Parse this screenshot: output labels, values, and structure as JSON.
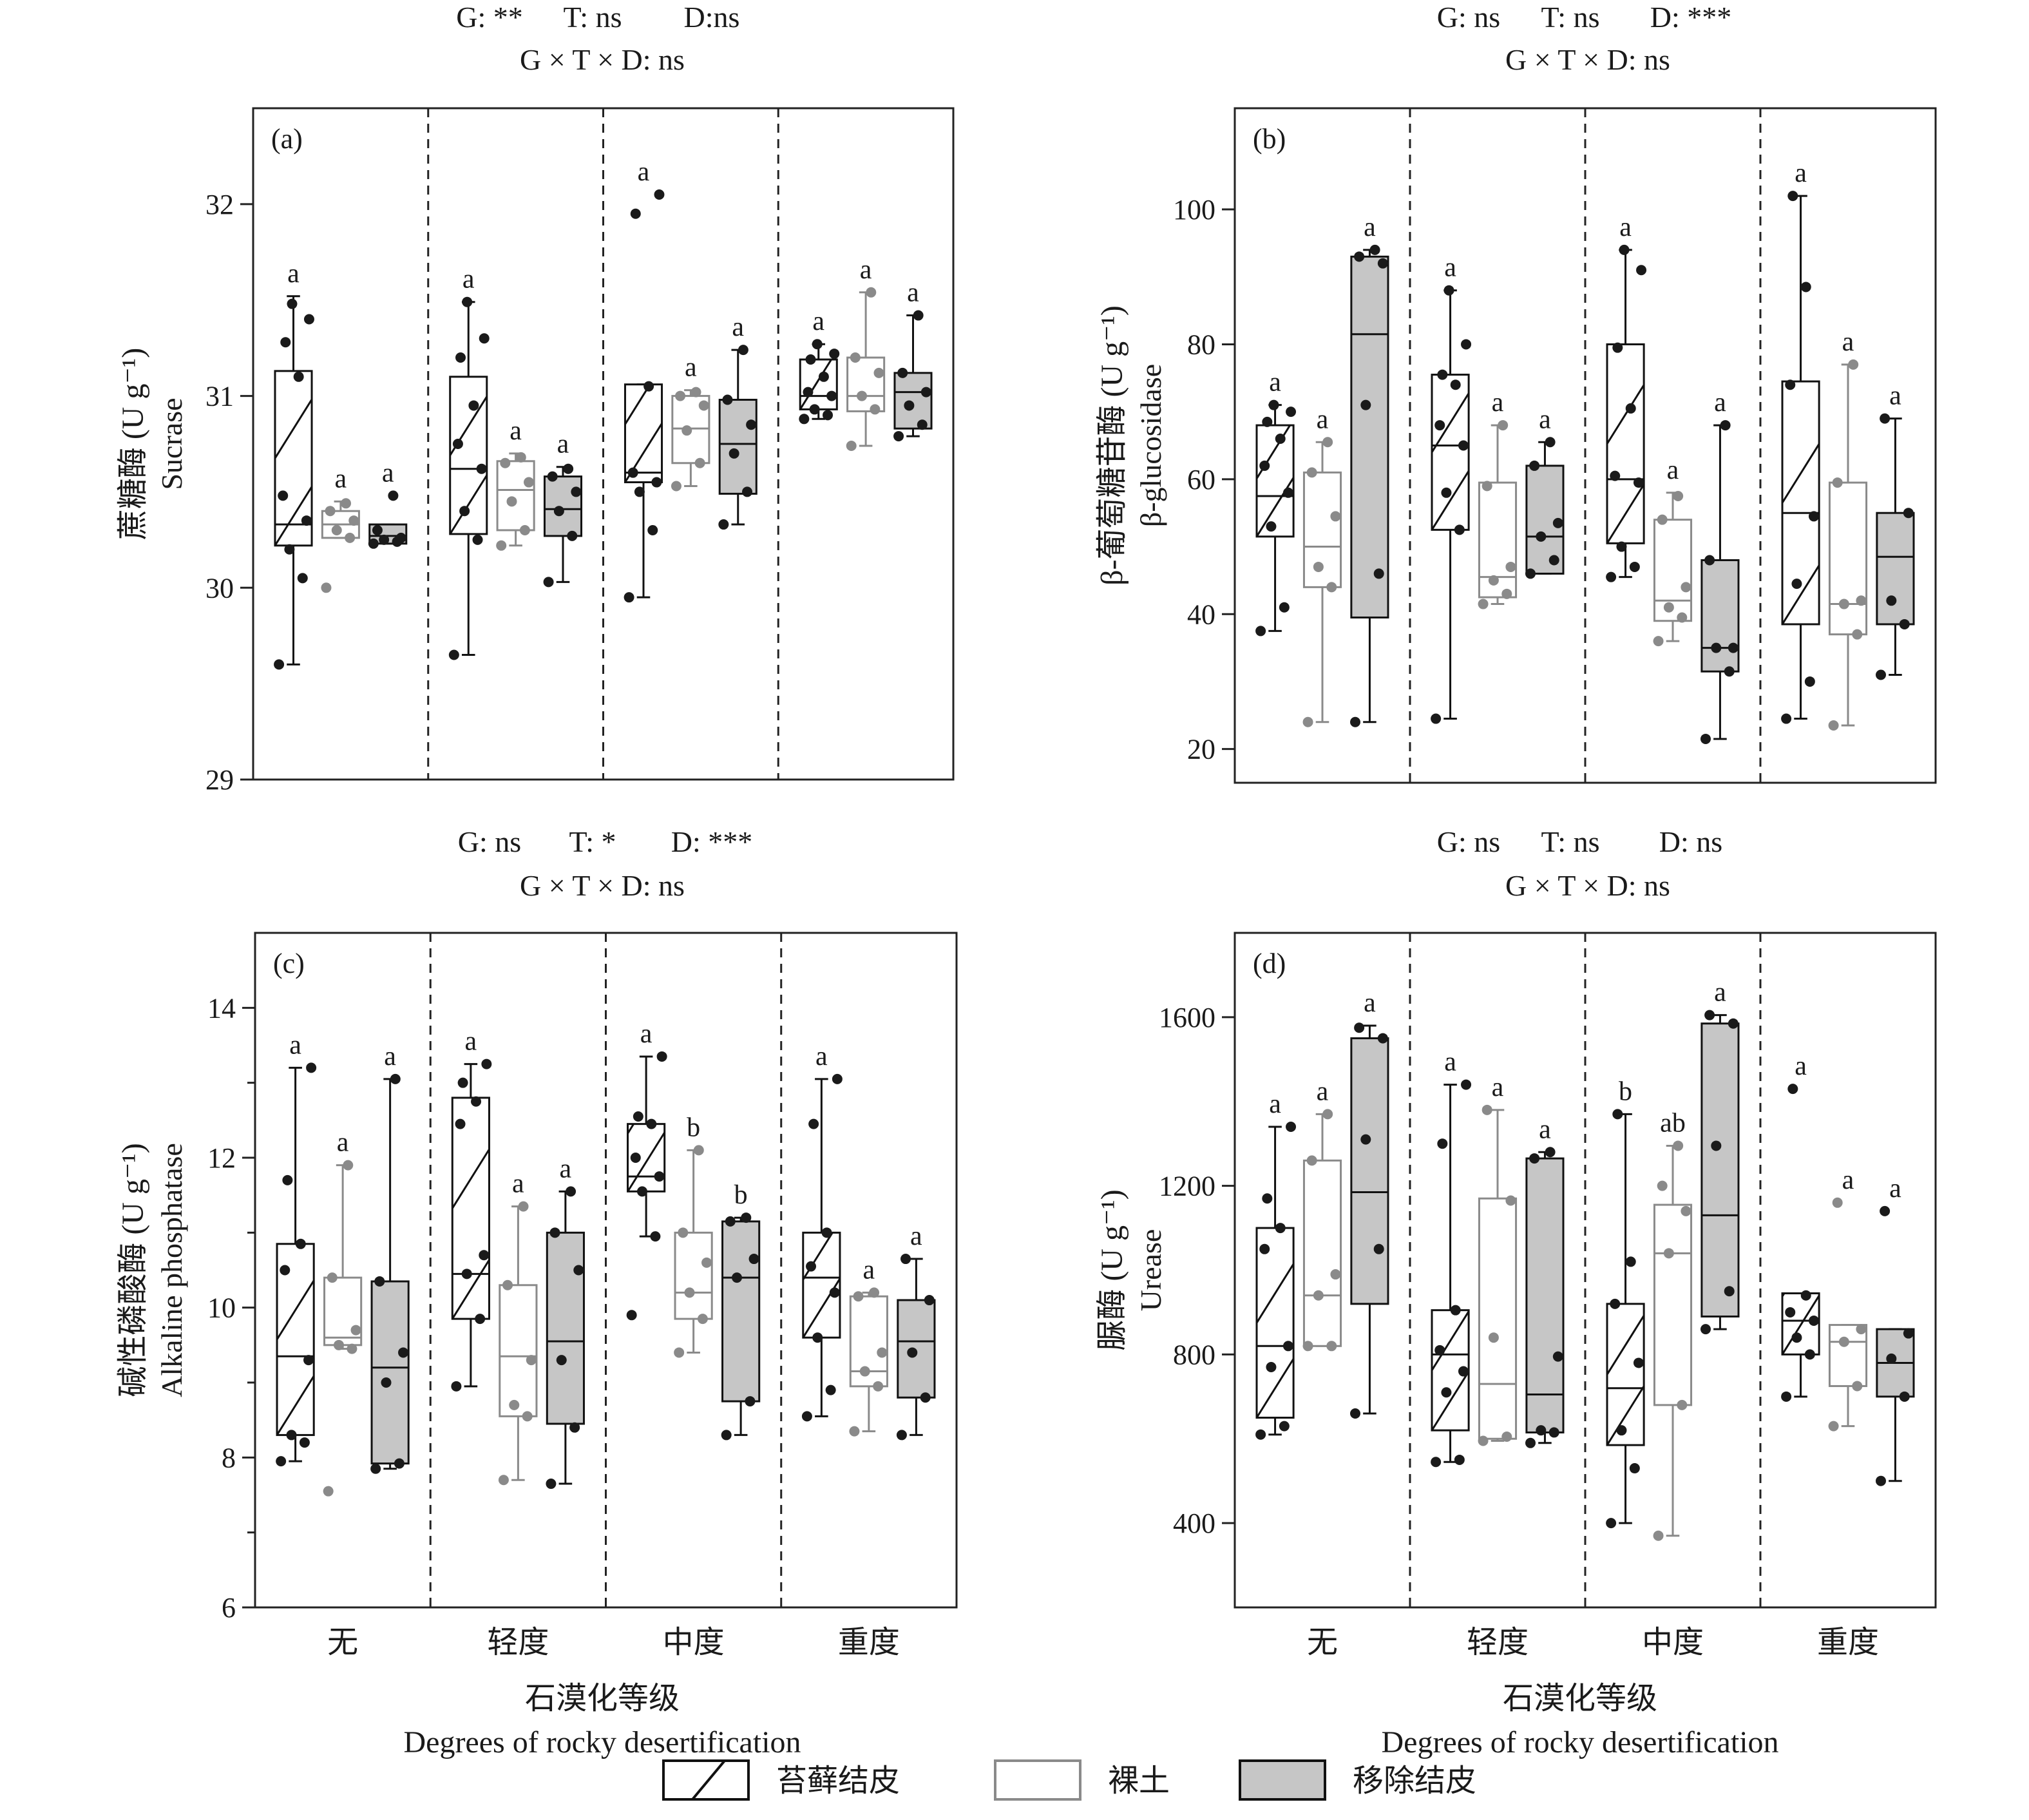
{
  "x_axis": {
    "categories": [
      "无",
      "轻度",
      "中度",
      "重度"
    ],
    "label_zh": "石漠化等级",
    "label_en": "Degrees of rocky desertification"
  },
  "legend": [
    {
      "label": "苔藓结皮",
      "fill": "#ffffff",
      "stroke": "#111111",
      "hatch": true
    },
    {
      "label": "裸土",
      "fill": "#ffffff",
      "stroke": "#8a8a8a",
      "hatch": false
    },
    {
      "label": "移除结皮",
      "fill": "#c6c6c6",
      "stroke": "#111111",
      "hatch": false
    }
  ],
  "colors": {
    "dark": "#1a1a1a",
    "grey_point": "#8a8a8a",
    "grey_fill": "#c6c6c6"
  },
  "chart_data": [
    {
      "type": "box",
      "panel": "(a)",
      "stats_line1": [
        "G: **",
        "T: ns",
        "D:ns"
      ],
      "stats_line2": "G × T × D: ns",
      "ylabel_zh": "蔗糖酶 (U g⁻¹)",
      "ylabel_en": "Sucrase",
      "ylim": [
        29,
        32.5
      ],
      "yticks": [
        29,
        30,
        31,
        32
      ],
      "minor_ticks": [],
      "groups": [
        [
          {
            "q1": 30.22,
            "median": 30.33,
            "q3": 31.13,
            "min": 29.6,
            "max": 31.52,
            "letter": "a",
            "points": [
              29.6,
              30.05,
              30.2,
              30.35,
              30.48,
              31.1,
              31.28,
              31.4,
              31.48
            ]
          },
          {
            "q1": 30.26,
            "median": 30.33,
            "q3": 30.4,
            "min": 30.26,
            "max": 30.45,
            "letter": "a",
            "points": [
              30.0,
              30.26,
              30.3,
              30.35,
              30.4,
              30.44
            ]
          },
          {
            "q1": 30.23,
            "median": 30.27,
            "q3": 30.33,
            "min": 30.23,
            "max": 30.33,
            "letter": "a",
            "points": [
              30.23,
              30.24,
              30.25,
              30.26,
              30.3,
              30.48
            ]
          }
        ],
        [
          {
            "q1": 30.28,
            "median": 30.62,
            "q3": 31.1,
            "min": 29.65,
            "max": 31.49,
            "letter": "a",
            "points": [
              29.65,
              30.25,
              30.4,
              30.62,
              30.75,
              30.95,
              31.2,
              31.3,
              31.49
            ]
          },
          {
            "q1": 30.3,
            "median": 30.51,
            "q3": 30.66,
            "min": 30.22,
            "max": 30.7,
            "letter": "a",
            "points": [
              30.22,
              30.3,
              30.45,
              30.55,
              30.65,
              30.68
            ]
          },
          {
            "q1": 30.27,
            "median": 30.41,
            "q3": 30.58,
            "min": 30.03,
            "max": 30.63,
            "letter": "a",
            "points": [
              30.03,
              30.27,
              30.4,
              30.5,
              30.58,
              30.62
            ]
          }
        ],
        [
          {
            "q1": 30.55,
            "median": 30.6,
            "q3": 31.06,
            "min": 29.95,
            "max": 31.06,
            "letter": "a",
            "points": [
              29.95,
              30.3,
              30.5,
              30.55,
              30.6,
              31.05,
              31.95,
              32.05
            ]
          },
          {
            "q1": 30.65,
            "median": 30.83,
            "q3": 31.0,
            "min": 30.53,
            "max": 31.03,
            "letter": "a",
            "points": [
              30.53,
              30.65,
              30.82,
              30.95,
              31.0,
              31.02
            ]
          },
          {
            "q1": 30.49,
            "median": 30.75,
            "q3": 30.98,
            "min": 30.33,
            "max": 31.24,
            "letter": "a",
            "points": [
              30.33,
              30.5,
              30.7,
              30.85,
              30.98,
              31.24
            ]
          }
        ],
        [
          {
            "q1": 30.93,
            "median": 31.0,
            "q3": 31.19,
            "min": 30.88,
            "max": 31.27,
            "letter": "a",
            "points": [
              30.88,
              30.9,
              30.93,
              31.0,
              31.02,
              31.1,
              31.19,
              31.22,
              31.27
            ]
          },
          {
            "q1": 30.92,
            "median": 31.0,
            "q3": 31.2,
            "min": 30.74,
            "max": 31.54,
            "letter": "a",
            "points": [
              30.74,
              30.93,
              31.0,
              31.12,
              31.2,
              31.54
            ]
          },
          {
            "q1": 30.83,
            "median": 31.02,
            "q3": 31.12,
            "min": 30.79,
            "max": 31.42,
            "letter": "a",
            "points": [
              30.79,
              30.85,
              30.95,
              31.02,
              31.12,
              31.42
            ]
          }
        ]
      ]
    },
    {
      "type": "box",
      "panel": "(b)",
      "stats_line1": [
        "G: ns",
        "T: ns",
        "D: ***"
      ],
      "stats_line2": "G × T × D: ns",
      "ylabel_zh": "β-葡萄糖苷酶 (U g⁻¹)",
      "ylabel_en": "β-glucosidase",
      "ylim": [
        15,
        115
      ],
      "yticks": [
        20,
        40,
        60,
        80,
        100
      ],
      "minor_ticks": [],
      "groups": [
        [
          {
            "q1": 51.5,
            "median": 57.5,
            "q3": 68.0,
            "min": 37.5,
            "max": 71.0,
            "letter": "a",
            "points": [
              37.5,
              41.0,
              53.0,
              58.0,
              62.0,
              66.0,
              68.5,
              70.0,
              71.0
            ]
          },
          {
            "q1": 44.0,
            "median": 50.0,
            "q3": 61.0,
            "min": 24.0,
            "max": 65.5,
            "letter": "a",
            "points": [
              24.0,
              44.0,
              47.0,
              54.5,
              61.0,
              65.5
            ]
          },
          {
            "q1": 39.5,
            "median": 81.5,
            "q3": 93.0,
            "min": 24.0,
            "max": 94.0,
            "letter": "a",
            "points": [
              24.0,
              46.0,
              71.0,
              92.0,
              93.0,
              94.0
            ]
          }
        ],
        [
          {
            "q1": 52.5,
            "median": 65.0,
            "q3": 75.5,
            "min": 24.5,
            "max": 88.0,
            "letter": "a",
            "points": [
              24.5,
              52.5,
              58.0,
              65.0,
              68.0,
              74.0,
              75.5,
              80.0,
              88.0
            ]
          },
          {
            "q1": 42.5,
            "median": 45.5,
            "q3": 59.5,
            "min": 41.5,
            "max": 68.0,
            "letter": "a",
            "points": [
              41.5,
              43.0,
              45.0,
              47.0,
              59.0,
              68.0
            ]
          },
          {
            "q1": 46.0,
            "median": 51.5,
            "q3": 62.0,
            "min": 46.0,
            "max": 65.5,
            "letter": "a",
            "points": [
              46.0,
              48.0,
              51.5,
              53.5,
              62.0,
              65.5
            ]
          }
        ],
        [
          {
            "q1": 50.5,
            "median": 60.0,
            "q3": 80.0,
            "min": 45.5,
            "max": 94.0,
            "letter": "a",
            "points": [
              45.5,
              47.0,
              50.0,
              59.5,
              60.5,
              70.5,
              79.5,
              91.0,
              94.0
            ]
          },
          {
            "q1": 39.0,
            "median": 42.0,
            "q3": 54.0,
            "min": 36.0,
            "max": 58.0,
            "letter": "a",
            "points": [
              36.0,
              39.5,
              41.0,
              44.0,
              54.0,
              57.5
            ]
          },
          {
            "q1": 31.5,
            "median": 35.0,
            "q3": 48.0,
            "min": 21.5,
            "max": 68.0,
            "letter": "a",
            "points": [
              21.5,
              31.5,
              35.0,
              35.0,
              48.0,
              68.0
            ]
          }
        ],
        [
          {
            "q1": 38.5,
            "median": 55.0,
            "q3": 74.5,
            "min": 24.5,
            "max": 102.0,
            "letter": "a",
            "points": [
              24.5,
              30.0,
              44.5,
              54.5,
              74.0,
              88.5,
              102.0
            ]
          },
          {
            "q1": 37.0,
            "median": 41.5,
            "q3": 59.5,
            "min": 23.5,
            "max": 77.0,
            "letter": "a",
            "points": [
              23.5,
              37.0,
              41.5,
              42.0,
              59.5,
              77.0
            ]
          },
          {
            "q1": 38.5,
            "median": 48.5,
            "q3": 55.0,
            "min": 31.0,
            "max": 69.0,
            "letter": "a",
            "points": [
              31.0,
              38.5,
              42.0,
              55.0,
              69.0
            ]
          }
        ]
      ]
    },
    {
      "type": "box",
      "panel": "(c)",
      "stats_line1": [
        "G: ns",
        "T: *",
        "D: ***"
      ],
      "stats_line2": "G × T × D: ns",
      "ylabel_zh": "碱性磷酸酶 (U g⁻¹)",
      "ylabel_en": "Alkaline phosphatase",
      "ylim": [
        6,
        15
      ],
      "yticks": [
        6,
        8,
        10,
        12,
        14
      ],
      "minor_ticks": [
        7,
        9,
        11,
        13
      ],
      "groups": [
        [
          {
            "q1": 8.3,
            "median": 9.35,
            "q3": 10.85,
            "min": 7.95,
            "max": 13.2,
            "letter": "a",
            "points": [
              7.95,
              8.2,
              8.3,
              9.3,
              10.5,
              10.85,
              11.7,
              13.2
            ]
          },
          {
            "q1": 9.5,
            "median": 9.6,
            "q3": 10.4,
            "min": 9.45,
            "max": 11.9,
            "letter": "a",
            "points": [
              7.55,
              9.45,
              9.5,
              9.7,
              10.4,
              11.9
            ]
          },
          {
            "q1": 7.92,
            "median": 9.2,
            "q3": 10.35,
            "min": 7.85,
            "max": 13.05,
            "letter": "a",
            "points": [
              7.85,
              7.92,
              9.0,
              9.4,
              10.35,
              13.05
            ]
          }
        ],
        [
          {
            "q1": 9.85,
            "median": 10.45,
            "q3": 12.8,
            "min": 8.95,
            "max": 13.25,
            "letter": "a",
            "points": [
              8.95,
              9.85,
              10.45,
              10.7,
              12.45,
              12.75,
              13.0,
              13.25
            ]
          },
          {
            "q1": 8.55,
            "median": 9.35,
            "q3": 10.3,
            "min": 7.7,
            "max": 11.35,
            "letter": "a",
            "points": [
              7.7,
              8.55,
              8.7,
              9.3,
              10.3,
              11.35
            ]
          },
          {
            "q1": 8.45,
            "median": 9.55,
            "q3": 11.0,
            "min": 7.65,
            "max": 11.55,
            "letter": "a",
            "points": [
              7.65,
              8.4,
              9.3,
              10.5,
              11.0,
              11.55
            ]
          }
        ],
        [
          {
            "q1": 11.55,
            "median": 11.75,
            "q3": 12.45,
            "min": 10.95,
            "max": 13.35,
            "letter": "a",
            "points": [
              9.9,
              10.95,
              11.55,
              11.75,
              12.0,
              12.45,
              12.55,
              13.35
            ]
          },
          {
            "q1": 9.85,
            "median": 10.2,
            "q3": 11.0,
            "min": 9.4,
            "max": 12.1,
            "letter": "b",
            "points": [
              9.4,
              9.85,
              10.2,
              10.6,
              11.0,
              12.1
            ]
          },
          {
            "q1": 8.75,
            "median": 10.4,
            "q3": 11.15,
            "min": 8.3,
            "max": 11.2,
            "letter": "b",
            "points": [
              8.3,
              8.75,
              10.4,
              10.65,
              11.15,
              11.2
            ]
          }
        ],
        [
          {
            "q1": 9.6,
            "median": 10.4,
            "q3": 11.0,
            "min": 8.55,
            "max": 13.05,
            "letter": "a",
            "points": [
              8.55,
              8.9,
              9.6,
              10.2,
              10.55,
              11.0,
              12.45,
              13.05
            ]
          },
          {
            "q1": 8.95,
            "median": 9.15,
            "q3": 10.15,
            "min": 8.35,
            "max": 10.2,
            "letter": "a",
            "points": [
              8.35,
              8.95,
              9.15,
              9.4,
              10.15,
              10.2
            ]
          },
          {
            "q1": 8.8,
            "median": 9.55,
            "q3": 10.1,
            "min": 8.3,
            "max": 10.65,
            "letter": "a",
            "points": [
              8.3,
              8.8,
              9.4,
              10.1,
              10.65
            ]
          }
        ]
      ]
    },
    {
      "type": "box",
      "panel": "(d)",
      "stats_line1": [
        "G: ns",
        "T: ns",
        "D: ns"
      ],
      "stats_line2": "G × T × D: ns",
      "ylabel_zh": "脲酶 (U g⁻¹)",
      "ylabel_en": "Urease",
      "ylim": [
        200,
        1800
      ],
      "yticks": [
        400,
        800,
        1200,
        1600
      ],
      "minor_ticks": [],
      "groups": [
        [
          {
            "q1": 650,
            "median": 820,
            "q3": 1100,
            "min": 610,
            "max": 1340,
            "letter": "a",
            "points": [
              610,
              630,
              770,
              820,
              1050,
              1100,
              1170,
              1340
            ]
          },
          {
            "q1": 820,
            "median": 940,
            "q3": 1260,
            "min": 820,
            "max": 1370,
            "letter": "a",
            "points": [
              820,
              820,
              940,
              990,
              1260,
              1370
            ]
          },
          {
            "q1": 920,
            "median": 1185,
            "q3": 1550,
            "min": 660,
            "max": 1580,
            "letter": "a",
            "points": [
              660,
              1050,
              1310,
              1550,
              1575
            ]
          }
        ],
        [
          {
            "q1": 620,
            "median": 800,
            "q3": 905,
            "min": 545,
            "max": 1440,
            "letter": "a",
            "points": [
              545,
              550,
              710,
              760,
              810,
              905,
              1300,
              1440
            ]
          },
          {
            "q1": 600,
            "median": 730,
            "q3": 1170,
            "min": 595,
            "max": 1380,
            "letter": "a",
            "points": [
              595,
              605,
              840,
              1165,
              1380
            ]
          },
          {
            "q1": 615,
            "median": 705,
            "q3": 1265,
            "min": 590,
            "max": 1280,
            "letter": "a",
            "points": [
              590,
              615,
              620,
              795,
              1265,
              1280
            ]
          }
        ],
        [
          {
            "q1": 585,
            "median": 720,
            "q3": 920,
            "min": 400,
            "max": 1370,
            "letter": "b",
            "points": [
              400,
              530,
              620,
              780,
              920,
              1020,
              1370
            ]
          },
          {
            "q1": 680,
            "median": 1040,
            "q3": 1155,
            "min": 370,
            "max": 1295,
            "letter": "ab",
            "points": [
              370,
              680,
              1040,
              1140,
              1200,
              1295
            ]
          },
          {
            "q1": 890,
            "median": 1130,
            "q3": 1585,
            "min": 860,
            "max": 1605,
            "letter": "a",
            "points": [
              860,
              950,
              1295,
              1585,
              1605
            ]
          }
        ],
        [
          {
            "q1": 800,
            "median": 880,
            "q3": 945,
            "min": 700,
            "max": 945,
            "letter": "a",
            "points": [
              700,
              800,
              840,
              880,
              900,
              940,
              1430
            ]
          },
          {
            "q1": 725,
            "median": 830,
            "q3": 870,
            "min": 630,
            "max": 870,
            "letter": "a",
            "points": [
              630,
              725,
              830,
              860,
              1160
            ]
          },
          {
            "q1": 700,
            "median": 780,
            "q3": 860,
            "min": 500,
            "max": 860,
            "letter": "a",
            "points": [
              500,
              700,
              790,
              850,
              1140
            ]
          }
        ]
      ]
    }
  ]
}
